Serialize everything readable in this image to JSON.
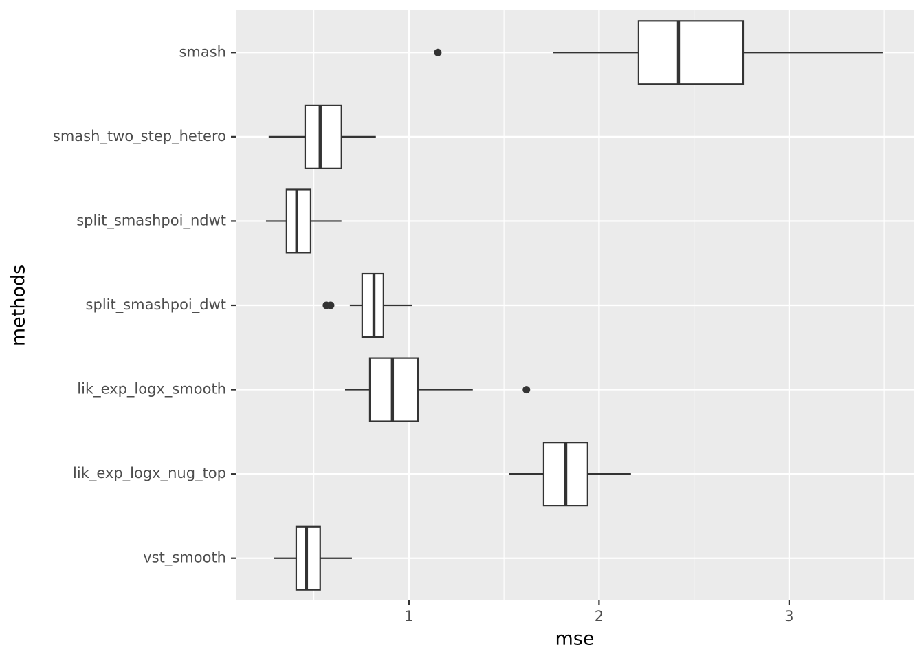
{
  "chart_data": {
    "type": "boxplot",
    "orientation": "horizontal",
    "x_label": "mse",
    "y_label": "methods",
    "categories": [
      "smash",
      "smash_two_step_hetero",
      "split_smashpoi_ndwt",
      "split_smashpoi_dwt",
      "lik_exp_logx_smooth",
      "lik_exp_logx_nug_top",
      "vst_smooth"
    ],
    "boxes": [
      {
        "low": 1.759,
        "q1": 2.208,
        "median": 2.418,
        "q3": 2.758,
        "high": 3.492,
        "outliers": [
          1.152
        ]
      },
      {
        "low": 0.262,
        "q1": 0.454,
        "median": 0.533,
        "q3": 0.645,
        "high": 0.826
      },
      {
        "low": 0.248,
        "q1": 0.356,
        "median": 0.41,
        "q3": 0.483,
        "high": 0.645
      },
      {
        "low": 0.689,
        "q1": 0.754,
        "median": 0.816,
        "q3": 0.866,
        "high": 1.018,
        "outliers": [
          0.566,
          0.588
        ]
      },
      {
        "low": 0.664,
        "q1": 0.794,
        "median": 0.913,
        "q3": 1.047,
        "high": 1.336,
        "outliers": [
          1.618
        ]
      },
      {
        "low": 1.528,
        "q1": 1.709,
        "median": 1.825,
        "q3": 1.94,
        "high": 2.168
      },
      {
        "low": 0.291,
        "q1": 0.407,
        "median": 0.461,
        "q3": 0.533,
        "high": 0.7
      }
    ],
    "xlim": [
      0.089,
      3.655
    ],
    "xticks": [
      1,
      2,
      3
    ],
    "x_minor_ticks": [
      0.5,
      1.5,
      2.5,
      3.5
    ],
    "grid": true,
    "box_fill": "#ffffff",
    "line_color": "#333333",
    "panel_color": "#ebebeb"
  }
}
